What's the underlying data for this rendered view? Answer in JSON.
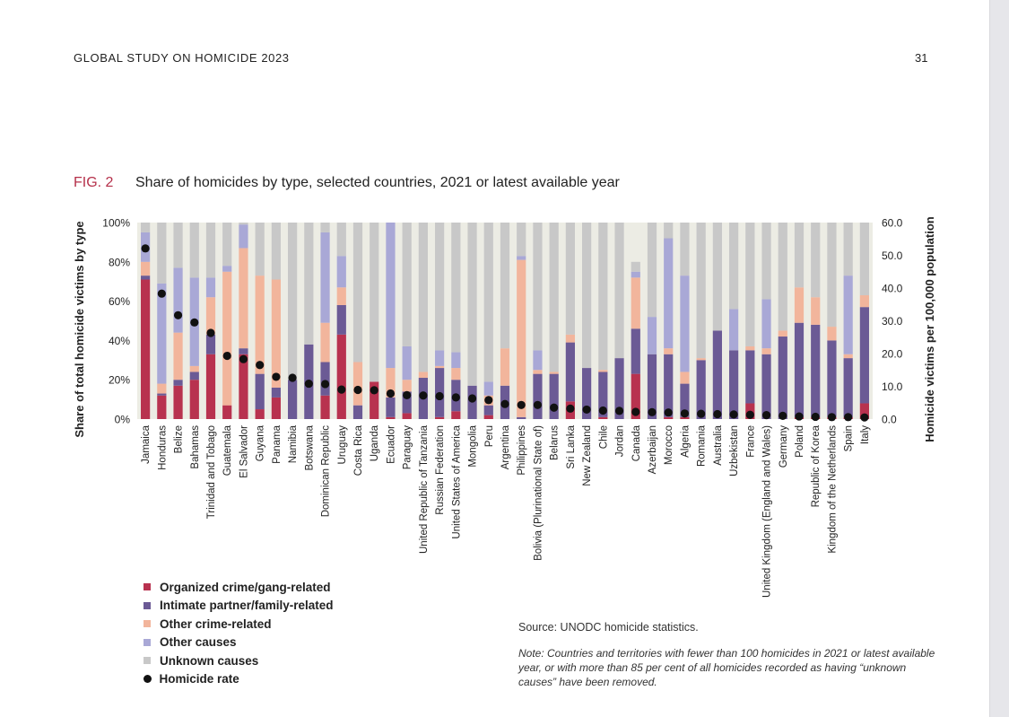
{
  "header": {
    "title": "GLOBAL STUDY ON HOMICIDE 2023",
    "page_number": "31"
  },
  "figure": {
    "label": "FIG. 2",
    "caption": "Share of homicides by type, selected countries, 2021 or latest available year"
  },
  "colors": {
    "organized": "#b8324f",
    "intimate": "#6b5a95",
    "other_crime": "#f2b59c",
    "other_causes": "#a9a8d6",
    "unknown": "#c8c8c8",
    "rate": "#111111",
    "plot_background": "#ecece4",
    "fig_label": "#b5304a"
  },
  "legend": [
    {
      "key": "organized",
      "label": "Organized crime/gang-related"
    },
    {
      "key": "intimate",
      "label": "Intimate partner/family-related"
    },
    {
      "key": "other_crime",
      "label": "Other crime-related"
    },
    {
      "key": "other_causes",
      "label": "Other causes"
    },
    {
      "key": "unknown",
      "label": "Unknown causes"
    },
    {
      "key": "rate",
      "label": "Homicide rate"
    }
  ],
  "source": "Source: UNODC homicide statistics.",
  "note": "Note: Countries and territories with fewer than 100 homicides in 2021 or latest available year, or with more than 85 per cent of all homicides recorded as having “unknown causes” have been removed.",
  "chart_data": {
    "type": "bar",
    "stacked": true,
    "ylabel": "Share of total homicide victims by type",
    "y2label": "Homicide victims per 100,000 population",
    "ylim": [
      0,
      100
    ],
    "y2lim": [
      0,
      60
    ],
    "yticks": [
      "0%",
      "20%",
      "40%",
      "60%",
      "80%",
      "100%"
    ],
    "y2ticks": [
      "0.0",
      "10.0",
      "20.0",
      "30.0",
      "40.0",
      "50.0",
      "60.0"
    ],
    "categories": [
      "Jamaica",
      "Honduras",
      "Belize",
      "Bahamas",
      "Trinidad and Tobago",
      "Guatemala",
      "El Salvador",
      "Guyana",
      "Panama",
      "Namibia",
      "Botswana",
      "Dominican Republic",
      "Uruguay",
      "Costa Rica",
      "Uganda",
      "Ecuador",
      "Paraguay",
      "United Republic of Tanzania",
      "Russian Federation",
      "United States of America",
      "Mongolia",
      "Peru",
      "Argentina",
      "Philippines",
      "Bolivia (Plurinational State of)",
      "Belarus",
      "Sri Lanka",
      "New Zealand",
      "Chile",
      "Jordan",
      "Canada",
      "Azerbaijan",
      "Morocco",
      "Algeria",
      "Romania",
      "Australia",
      "Uzbekistan",
      "France",
      "United Kingdom (England and Wales)",
      "Germany",
      "Poland",
      "Republic of Korea",
      "Kingdom of the Netherlands",
      "Spain",
      "Italy"
    ],
    "series": [
      {
        "key": "organized",
        "name": "Organized crime/gang-related",
        "values": [
          71,
          12,
          17,
          20,
          33,
          7,
          33,
          5,
          11,
          0,
          0,
          12,
          43,
          0,
          19,
          1,
          3,
          0,
          1,
          4,
          0,
          2,
          0,
          0,
          0,
          0,
          9,
          0,
          1,
          0,
          23,
          0,
          1,
          1,
          0,
          0,
          0,
          8,
          0,
          0,
          1,
          1,
          1,
          1,
          8
        ]
      },
      {
        "key": "intimate",
        "name": "Intimate partner/family-related",
        "values": [
          2,
          1,
          3,
          4,
          10,
          0,
          3,
          18,
          5,
          20,
          38,
          17,
          15,
          7,
          0,
          10,
          11,
          21,
          25,
          16,
          17,
          5,
          17,
          1,
          23,
          23,
          30,
          26,
          23,
          31,
          23,
          33,
          32,
          17,
          30,
          45,
          35,
          27,
          33,
          42,
          48,
          47,
          39,
          30,
          49
        ]
      },
      {
        "key": "other_crime",
        "name": "Other crime-related",
        "values": [
          7,
          5,
          24,
          3,
          19,
          68,
          51,
          50,
          55,
          0,
          0,
          20,
          9,
          22,
          0,
          15,
          6,
          3,
          1,
          6,
          0,
          5,
          19,
          80,
          2,
          1,
          4,
          0,
          1,
          0,
          26,
          0,
          3,
          6,
          1,
          0,
          0,
          2,
          3,
          3,
          18,
          14,
          7,
          2,
          6
        ]
      },
      {
        "key": "other_causes",
        "name": "Other causes",
        "values": [
          15,
          51,
          33,
          45,
          10,
          3,
          12,
          0,
          0,
          0,
          0,
          46,
          16,
          0,
          0,
          74,
          17,
          0,
          8,
          8,
          0,
          7,
          0,
          2,
          10,
          0,
          0,
          0,
          0,
          0,
          3,
          19,
          56,
          49,
          0,
          0,
          21,
          0,
          25,
          0,
          0,
          0,
          0,
          40,
          0
        ]
      },
      {
        "key": "unknown",
        "name": "Unknown causes",
        "values": [
          5,
          31,
          23,
          28,
          28,
          22,
          1,
          27,
          29,
          80,
          62,
          5,
          17,
          71,
          81,
          0,
          63,
          76,
          65,
          66,
          83,
          81,
          64,
          17,
          65,
          76,
          57,
          74,
          75,
          69,
          5,
          48,
          8,
          27,
          69,
          55,
          44,
          63,
          39,
          55,
          33,
          38,
          53,
          27,
          37
        ]
      }
    ],
    "rate": {
      "key": "rate",
      "name": "Homicide rate",
      "values": [
        52.1,
        38.3,
        31.7,
        29.5,
        26.3,
        19.3,
        18.3,
        16.5,
        12.9,
        12.6,
        10.8,
        10.7,
        9.0,
        8.9,
        8.8,
        7.8,
        7.3,
        7.2,
        7.0,
        6.6,
        6.3,
        5.8,
        4.6,
        4.3,
        4.3,
        3.5,
        3.2,
        2.9,
        2.6,
        2.5,
        2.2,
        2.1,
        2.0,
        1.7,
        1.6,
        1.5,
        1.4,
        1.3,
        1.2,
        1.0,
        0.8,
        0.7,
        0.6,
        0.6,
        0.5
      ]
    }
  }
}
